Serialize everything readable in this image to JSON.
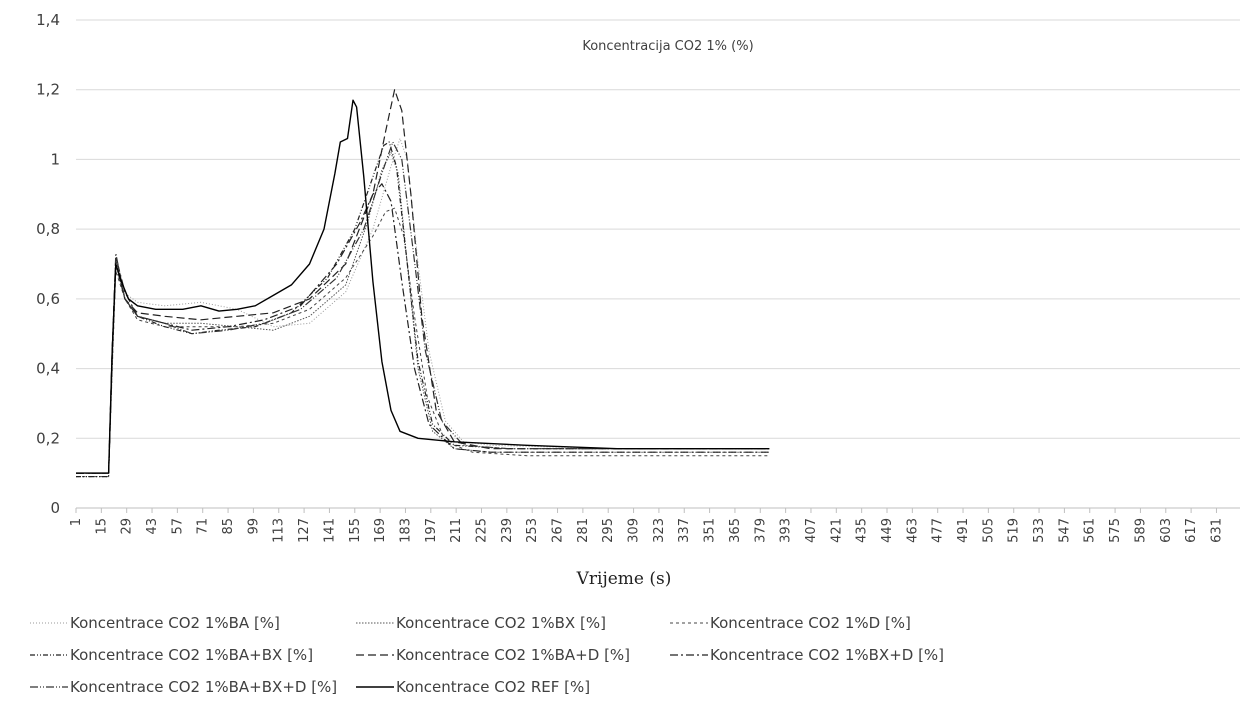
{
  "chart_data": {
    "type": "line",
    "title": "Koncentracija CO2 1% (%)",
    "xlabel": "Vrijeme (s)",
    "ylabel": "",
    "ylim": [
      0,
      1.4
    ],
    "xlim": [
      1,
      644
    ],
    "y_ticks": [
      "0",
      "0,2",
      "0,4",
      "0,6",
      "0,8",
      "1",
      "1,2",
      "1,4"
    ],
    "x_tick_labels": [
      "1",
      "15",
      "29",
      "43",
      "57",
      "71",
      "85",
      "99",
      "113",
      "127",
      "141",
      "155",
      "169",
      "183",
      "197",
      "211",
      "225",
      "239",
      "253",
      "267",
      "281",
      "295",
      "309",
      "323",
      "337",
      "351",
      "365",
      "379",
      "393",
      "407",
      "421",
      "435",
      "449",
      "463",
      "477",
      "491",
      "505",
      "519",
      "533",
      "547",
      "561",
      "575",
      "589",
      "603",
      "617",
      "631"
    ],
    "grid": "horizontal",
    "legend_position": "bottom",
    "series": [
      {
        "name": "Koncentrace CO2 1%BA [%]",
        "color": "#9a9a9a",
        "dash": "1,2",
        "width": 1,
        "points": [
          [
            1,
            0.09
          ],
          [
            19,
            0.09
          ],
          [
            21,
            0.4
          ],
          [
            23,
            0.69
          ],
          [
            27,
            0.62
          ],
          [
            35,
            0.59
          ],
          [
            50,
            0.58
          ],
          [
            70,
            0.59
          ],
          [
            90,
            0.57
          ],
          [
            110,
            0.52
          ],
          [
            130,
            0.53
          ],
          [
            150,
            0.62
          ],
          [
            165,
            0.8
          ],
          [
            175,
            0.98
          ],
          [
            180,
            1.06
          ],
          [
            184,
            1.0
          ],
          [
            190,
            0.7
          ],
          [
            196,
            0.45
          ],
          [
            205,
            0.25
          ],
          [
            215,
            0.19
          ],
          [
            230,
            0.18
          ],
          [
            300,
            0.17
          ],
          [
            384,
            0.17
          ]
        ]
      },
      {
        "name": "Koncentrace CO2 1%BX [%]",
        "color": "#555555",
        "dash": "1.5,1.5",
        "width": 1,
        "points": [
          [
            1,
            0.1
          ],
          [
            19,
            0.1
          ],
          [
            21,
            0.4
          ],
          [
            23,
            0.7
          ],
          [
            28,
            0.6
          ],
          [
            35,
            0.55
          ],
          [
            50,
            0.53
          ],
          [
            70,
            0.53
          ],
          [
            90,
            0.52
          ],
          [
            110,
            0.51
          ],
          [
            130,
            0.55
          ],
          [
            150,
            0.64
          ],
          [
            162,
            0.82
          ],
          [
            170,
            0.97
          ],
          [
            175,
            1.02
          ],
          [
            179,
            0.96
          ],
          [
            184,
            0.7
          ],
          [
            190,
            0.4
          ],
          [
            198,
            0.22
          ],
          [
            210,
            0.17
          ],
          [
            230,
            0.16
          ],
          [
            300,
            0.16
          ],
          [
            384,
            0.16
          ]
        ]
      },
      {
        "name": "Koncentrace CO2 1%D [%]",
        "color": "#444444",
        "dash": "3,3",
        "width": 1,
        "points": [
          [
            1,
            0.09
          ],
          [
            19,
            0.09
          ],
          [
            21,
            0.4
          ],
          [
            23,
            0.68
          ],
          [
            28,
            0.6
          ],
          [
            35,
            0.54
          ],
          [
            50,
            0.52
          ],
          [
            70,
            0.52
          ],
          [
            90,
            0.52
          ],
          [
            110,
            0.53
          ],
          [
            130,
            0.57
          ],
          [
            150,
            0.66
          ],
          [
            165,
            0.78
          ],
          [
            172,
            0.85
          ],
          [
            177,
            0.86
          ],
          [
            182,
            0.78
          ],
          [
            188,
            0.55
          ],
          [
            195,
            0.32
          ],
          [
            205,
            0.19
          ],
          [
            220,
            0.16
          ],
          [
            250,
            0.15
          ],
          [
            384,
            0.15
          ]
        ]
      },
      {
        "name": "Koncentrace CO2 1%BA+BX [%]",
        "color": "#222222",
        "dash": "5,2,1,2,1,2",
        "width": 1.2,
        "points": [
          [
            1,
            0.09
          ],
          [
            19,
            0.09
          ],
          [
            21,
            0.45
          ],
          [
            23,
            0.71
          ],
          [
            28,
            0.6
          ],
          [
            35,
            0.55
          ],
          [
            50,
            0.52
          ],
          [
            65,
            0.5
          ],
          [
            80,
            0.51
          ],
          [
            100,
            0.52
          ],
          [
            120,
            0.56
          ],
          [
            140,
            0.66
          ],
          [
            155,
            0.8
          ],
          [
            165,
            0.95
          ],
          [
            171,
            1.04
          ],
          [
            174,
            1.05
          ],
          [
            178,
            0.98
          ],
          [
            184,
            0.7
          ],
          [
            190,
            0.42
          ],
          [
            198,
            0.24
          ],
          [
            210,
            0.18
          ],
          [
            240,
            0.17
          ],
          [
            384,
            0.17
          ]
        ]
      },
      {
        "name": "Koncentrace CO2 1%BA+D [%]",
        "color": "#222222",
        "dash": "8,4",
        "width": 1.2,
        "points": [
          [
            1,
            0.1
          ],
          [
            19,
            0.1
          ],
          [
            21,
            0.45
          ],
          [
            23,
            0.7
          ],
          [
            28,
            0.6
          ],
          [
            35,
            0.56
          ],
          [
            50,
            0.55
          ],
          [
            70,
            0.54
          ],
          [
            90,
            0.55
          ],
          [
            110,
            0.56
          ],
          [
            130,
            0.6
          ],
          [
            150,
            0.7
          ],
          [
            165,
            0.9
          ],
          [
            172,
            1.08
          ],
          [
            177,
            1.2
          ],
          [
            181,
            1.14
          ],
          [
            186,
            0.9
          ],
          [
            192,
            0.55
          ],
          [
            200,
            0.28
          ],
          [
            210,
            0.19
          ],
          [
            230,
            0.17
          ],
          [
            384,
            0.17
          ]
        ]
      },
      {
        "name": "Koncentrace CO2 1%BX+D [%]",
        "color": "#222222",
        "dash": "8,3,2,3",
        "width": 1.2,
        "points": [
          [
            1,
            0.1
          ],
          [
            19,
            0.1
          ],
          [
            21,
            0.45
          ],
          [
            23,
            0.72
          ],
          [
            28,
            0.62
          ],
          [
            35,
            0.55
          ],
          [
            50,
            0.53
          ],
          [
            65,
            0.51
          ],
          [
            85,
            0.52
          ],
          [
            105,
            0.54
          ],
          [
            125,
            0.58
          ],
          [
            145,
            0.7
          ],
          [
            158,
            0.82
          ],
          [
            165,
            0.9
          ],
          [
            170,
            0.93
          ],
          [
            175,
            0.88
          ],
          [
            181,
            0.65
          ],
          [
            188,
            0.4
          ],
          [
            196,
            0.24
          ],
          [
            210,
            0.17
          ],
          [
            230,
            0.16
          ],
          [
            384,
            0.16
          ]
        ]
      },
      {
        "name": "Koncentrace CO2 1%BA+BX+D [%]",
        "color": "#333333",
        "dash": "8,2,1,2,1,2",
        "width": 1.2,
        "points": [
          [
            1,
            0.1
          ],
          [
            19,
            0.1
          ],
          [
            21,
            0.45
          ],
          [
            23,
            0.73
          ],
          [
            28,
            0.6
          ],
          [
            35,
            0.55
          ],
          [
            50,
            0.53
          ],
          [
            65,
            0.5
          ],
          [
            85,
            0.51
          ],
          [
            105,
            0.53
          ],
          [
            125,
            0.57
          ],
          [
            145,
            0.66
          ],
          [
            160,
            0.8
          ],
          [
            170,
            0.96
          ],
          [
            176,
            1.05
          ],
          [
            181,
            1.0
          ],
          [
            187,
            0.75
          ],
          [
            194,
            0.45
          ],
          [
            203,
            0.25
          ],
          [
            215,
            0.18
          ],
          [
            240,
            0.17
          ],
          [
            384,
            0.17
          ]
        ]
      },
      {
        "name": "Koncentrace CO2 REF [%]",
        "color": "#000000",
        "dash": "",
        "width": 1.4,
        "points": [
          [
            1,
            0.1
          ],
          [
            19,
            0.1
          ],
          [
            21,
            0.45
          ],
          [
            23,
            0.7
          ],
          [
            26,
            0.65
          ],
          [
            30,
            0.6
          ],
          [
            35,
            0.58
          ],
          [
            45,
            0.57
          ],
          [
            60,
            0.57
          ],
          [
            70,
            0.58
          ],
          [
            80,
            0.565
          ],
          [
            90,
            0.57
          ],
          [
            100,
            0.58
          ],
          [
            110,
            0.61
          ],
          [
            120,
            0.64
          ],
          [
            130,
            0.7
          ],
          [
            138,
            0.8
          ],
          [
            144,
            0.96
          ],
          [
            147,
            1.05
          ],
          [
            151,
            1.06
          ],
          [
            154,
            1.17
          ],
          [
            156,
            1.15
          ],
          [
            160,
            0.95
          ],
          [
            165,
            0.65
          ],
          [
            170,
            0.42
          ],
          [
            175,
            0.28
          ],
          [
            180,
            0.22
          ],
          [
            190,
            0.2
          ],
          [
            210,
            0.19
          ],
          [
            250,
            0.18
          ],
          [
            300,
            0.17
          ],
          [
            384,
            0.17
          ]
        ]
      }
    ]
  }
}
